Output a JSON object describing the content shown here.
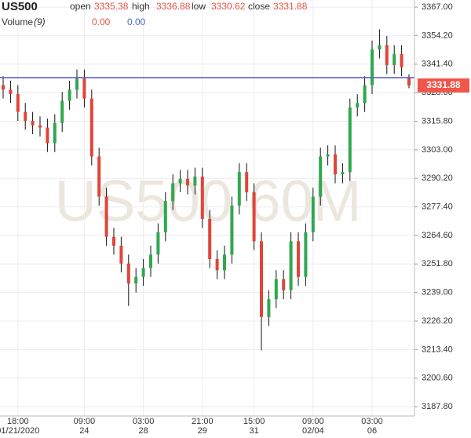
{
  "chart_data": {
    "type": "candlestick",
    "symbol": "US500",
    "watermark": "US500 60M",
    "ohlc_labels": [
      "open",
      "high",
      "low",
      "close"
    ],
    "volume_label": "Volume",
    "volume_period": "(9)",
    "volume_values": [
      "0.00",
      "0.00"
    ],
    "categories": [
      null,
      null,
      "18:00",
      null,
      null,
      null,
      null,
      null,
      null,
      null,
      null,
      "09:00",
      null,
      null,
      null,
      null,
      null,
      null,
      null,
      "03:00",
      null,
      null,
      null,
      null,
      null,
      null,
      null,
      "21:00",
      null,
      null,
      null,
      null,
      null,
      null,
      "15:00",
      null,
      null,
      null,
      null,
      null,
      null,
      null,
      "09:00",
      null,
      null,
      null,
      null,
      null,
      null,
      null,
      "03:00",
      null,
      null,
      null,
      null,
      null
    ],
    "category_dates": [
      null,
      null,
      "01/21/2020",
      null,
      null,
      null,
      null,
      null,
      null,
      null,
      null,
      "24",
      null,
      null,
      null,
      null,
      null,
      null,
      null,
      "28",
      null,
      null,
      null,
      null,
      null,
      null,
      null,
      "29",
      null,
      null,
      null,
      null,
      null,
      null,
      "31",
      null,
      null,
      null,
      null,
      null,
      null,
      null,
      "02/04",
      null,
      null,
      null,
      null,
      null,
      null,
      null,
      "06",
      null,
      null,
      null,
      null,
      null
    ],
    "open": [
      3332,
      3330,
      3328,
      3320,
      3316,
      3314,
      3313,
      3306,
      3315,
      3325,
      3330,
      3335,
      3326,
      3300,
      3282,
      3264,
      3260,
      3252,
      3243,
      3246,
      3250,
      3256,
      3266,
      3280,
      3288,
      3290,
      3287,
      3291,
      3272,
      3254,
      3249,
      3256,
      3278,
      3293,
      3284,
      3262,
      3228,
      3236,
      3245,
      3240,
      3262,
      3246,
      3266,
      3282,
      3300,
      3301,
      3292,
      3293,
      3322,
      3324,
      3332,
      3348,
      3350,
      3341,
      3346,
      3335.38
    ],
    "high": [
      3336,
      3334,
      3332,
      3324,
      3320,
      3318,
      3317,
      3319,
      3329,
      3334,
      3339,
      3339,
      3330,
      3304,
      3286,
      3268,
      3264,
      3256,
      3250,
      3254,
      3260,
      3270,
      3284,
      3292,
      3294,
      3294,
      3295,
      3295,
      3276,
      3258,
      3260,
      3282,
      3297,
      3297,
      3288,
      3266,
      3240,
      3249,
      3249,
      3266,
      3266,
      3270,
      3286,
      3304,
      3305,
      3305,
      3297,
      3326,
      3328,
      3336,
      3352,
      3357,
      3354,
      3350,
      3350,
      3336.88
    ],
    "low": [
      3326,
      3324,
      3316,
      3312,
      3310,
      3309,
      3302,
      3302,
      3311,
      3321,
      3326,
      3322,
      3296,
      3278,
      3260,
      3256,
      3248,
      3233,
      3239,
      3242,
      3246,
      3252,
      3262,
      3276,
      3284,
      3283,
      3283,
      3268,
      3250,
      3245,
      3245,
      3252,
      3274,
      3280,
      3258,
      3213,
      3224,
      3232,
      3236,
      3236,
      3242,
      3242,
      3262,
      3278,
      3296,
      3288,
      3288,
      3289,
      3318,
      3320,
      3328,
      3344,
      3337,
      3337,
      3336,
      3330.62
    ],
    "close": [
      3330,
      3328,
      3320,
      3316,
      3314,
      3313,
      3306,
      3315,
      3325,
      3330,
      3335,
      3326,
      3300,
      3282,
      3264,
      3260,
      3252,
      3243,
      3246,
      3250,
      3256,
      3266,
      3280,
      3288,
      3290,
      3287,
      3291,
      3272,
      3254,
      3249,
      3256,
      3278,
      3293,
      3284,
      3262,
      3228,
      3236,
      3245,
      3240,
      3262,
      3246,
      3266,
      3282,
      3300,
      3301,
      3292,
      3293,
      3322,
      3324,
      3332,
      3348,
      3350,
      3341,
      3346,
      3340,
      3331.88
    ],
    "up_color": "#2fa84f",
    "down_color": "#e0453a",
    "wick_color": "#111111",
    "hline": {
      "value": 3335.4,
      "color": "#5b5fc7"
    },
    "ylim": [
      3183.6,
      3370.2
    ],
    "yticks": [
      {
        "value": 3367,
        "label": "3367.00"
      },
      {
        "value": 3354.2,
        "label": "3354.20"
      },
      {
        "value": 3341.4,
        "label": "3341.40"
      },
      {
        "value": 3328.6,
        "label": "3328.60"
      },
      {
        "value": 3315.8,
        "label": "3315.80"
      },
      {
        "value": 3303,
        "label": "3303.00"
      },
      {
        "value": 3290.2,
        "label": "3290.20"
      },
      {
        "value": 3277.4,
        "label": "3277.40"
      },
      {
        "value": 3264.6,
        "label": "3264.60"
      },
      {
        "value": 3251.8,
        "label": "3251.80"
      },
      {
        "value": 3239,
        "label": "3239.00"
      },
      {
        "value": 3226.2,
        "label": "3226.20"
      },
      {
        "value": 3213.4,
        "label": "3213.40"
      },
      {
        "value": 3200.6,
        "label": "3200.60"
      },
      {
        "value": 3187.8,
        "label": "3187.80"
      }
    ],
    "grid": true
  }
}
